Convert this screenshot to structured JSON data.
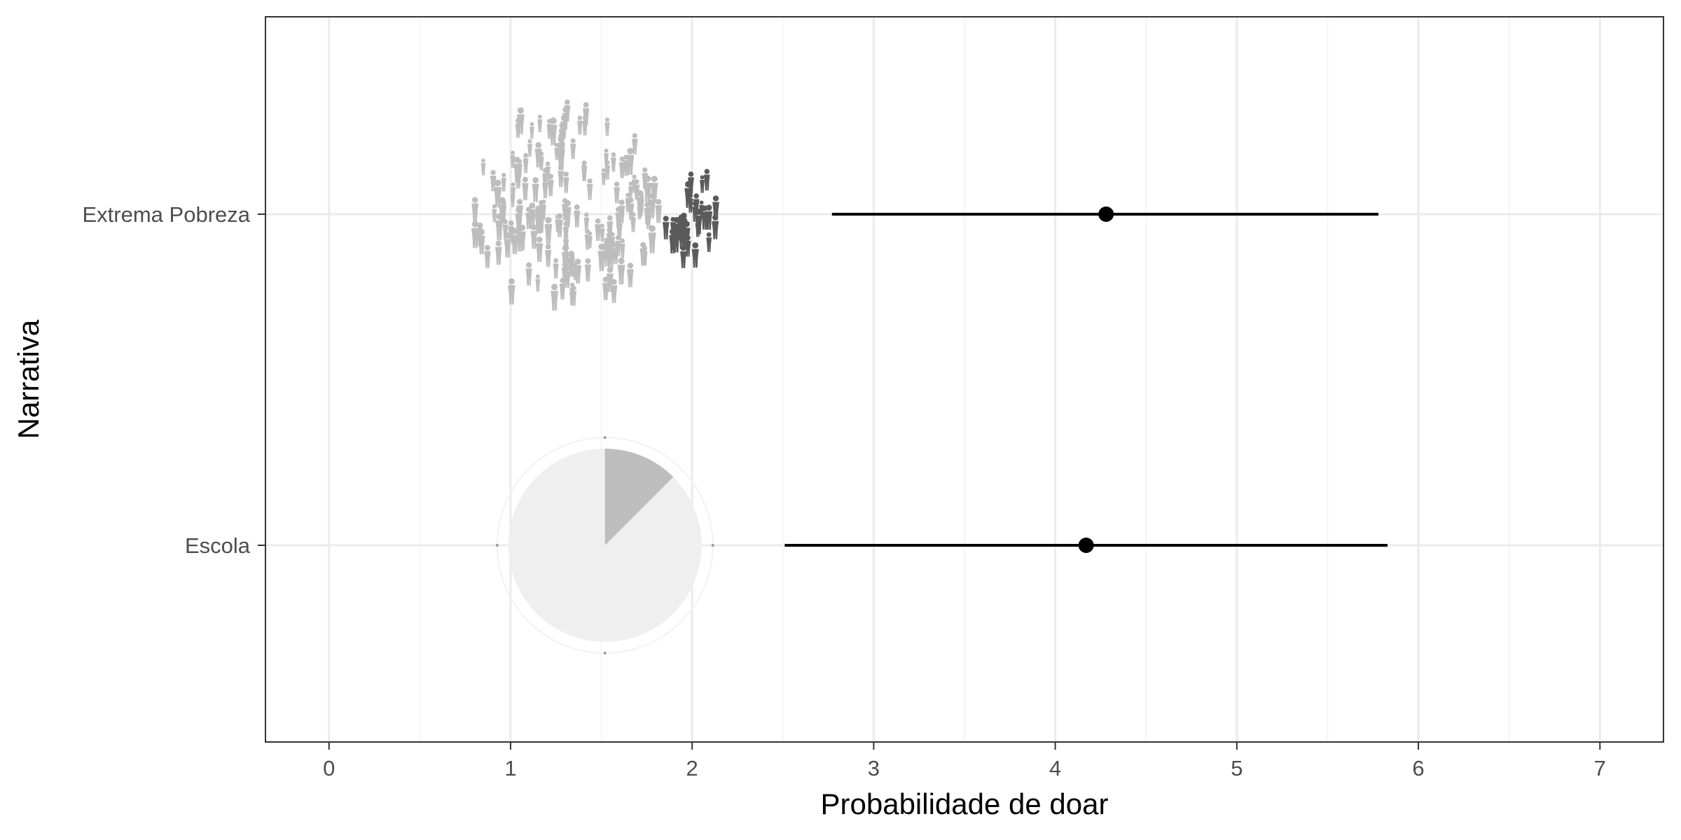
{
  "chart_data": {
    "type": "scatter",
    "title": "",
    "xlabel": "Probabilidade de doar",
    "ylabel": "Narrativa",
    "xlim": [
      -0.35,
      7.35
    ],
    "x_ticks": [
      0,
      1,
      2,
      3,
      4,
      5,
      6,
      7
    ],
    "x_tick_labels": [
      "0",
      "1",
      "2",
      "3",
      "4",
      "5",
      "6",
      "7"
    ],
    "categories": [
      "Extrema Pobreza",
      "Escola"
    ],
    "grid": true,
    "legend": "none",
    "series": [
      {
        "points": [
          {
            "category": "Extrema Pobreza",
            "mean": 4.28,
            "low": 2.77,
            "high": 5.78
          },
          {
            "category": "Escola",
            "mean": 4.17,
            "low": 2.51,
            "high": 5.83
          }
        ]
      }
    ],
    "annotations": [
      {
        "category": "Extrema Pobreza",
        "kind": "crowd-silhouettes",
        "description": "large light-grey crowd cluster",
        "x_center": 1.3,
        "color": "#bdbdbd"
      },
      {
        "category": "Extrema Pobreza",
        "kind": "crowd-silhouettes",
        "description": "small dark-grey crowd cluster",
        "x_center": 2.0,
        "color": "#5a5a5a"
      },
      {
        "category": "Escola",
        "kind": "pie-clock",
        "x_center": 1.52,
        "filled_fraction": 0.125,
        "fill_color": "#bdbdbd",
        "background_color": "#efefef"
      }
    ]
  }
}
